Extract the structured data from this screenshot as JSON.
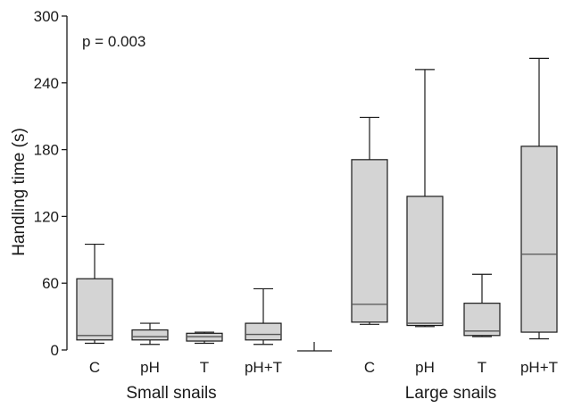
{
  "chart_data": {
    "type": "boxplot",
    "ylabel": "Handling time (s)",
    "ylim": [
      0,
      300
    ],
    "yticks": [
      0,
      60,
      120,
      180,
      240,
      300
    ],
    "ytick_labels": [
      "0",
      "60",
      "120",
      "180",
      "240",
      "300"
    ],
    "annotation": "p = 0.003",
    "grid": false,
    "groups": [
      {
        "label": "Small snails",
        "boxes": [
          {
            "category": "C",
            "whisker_low": 6,
            "q1": 9,
            "median": 13,
            "q3": 64,
            "whisker_high": 95
          },
          {
            "category": "pH",
            "whisker_low": 5,
            "q1": 9,
            "median": 12,
            "q3": 18,
            "whisker_high": 24
          },
          {
            "category": "T",
            "whisker_low": 6,
            "q1": 8,
            "median": 12,
            "q3": 15,
            "whisker_high": 16
          },
          {
            "category": "pH+T",
            "whisker_low": 5,
            "q1": 9,
            "median": 14,
            "q3": 24,
            "whisker_high": 55
          }
        ]
      },
      {
        "label": "Large snails",
        "boxes": [
          {
            "category": "C",
            "whisker_low": 23,
            "q1": 25,
            "median": 41,
            "q3": 171,
            "whisker_high": 209
          },
          {
            "category": "pH",
            "whisker_low": 21,
            "q1": 22,
            "median": 24,
            "q3": 138,
            "whisker_high": 252
          },
          {
            "category": "T",
            "whisker_low": 12,
            "q1": 13,
            "median": 17,
            "q3": 42,
            "whisker_high": 68
          },
          {
            "category": "pH+T",
            "whisker_low": 10,
            "q1": 16,
            "median": 86,
            "q3": 183,
            "whisker_high": 262
          }
        ]
      }
    ]
  }
}
